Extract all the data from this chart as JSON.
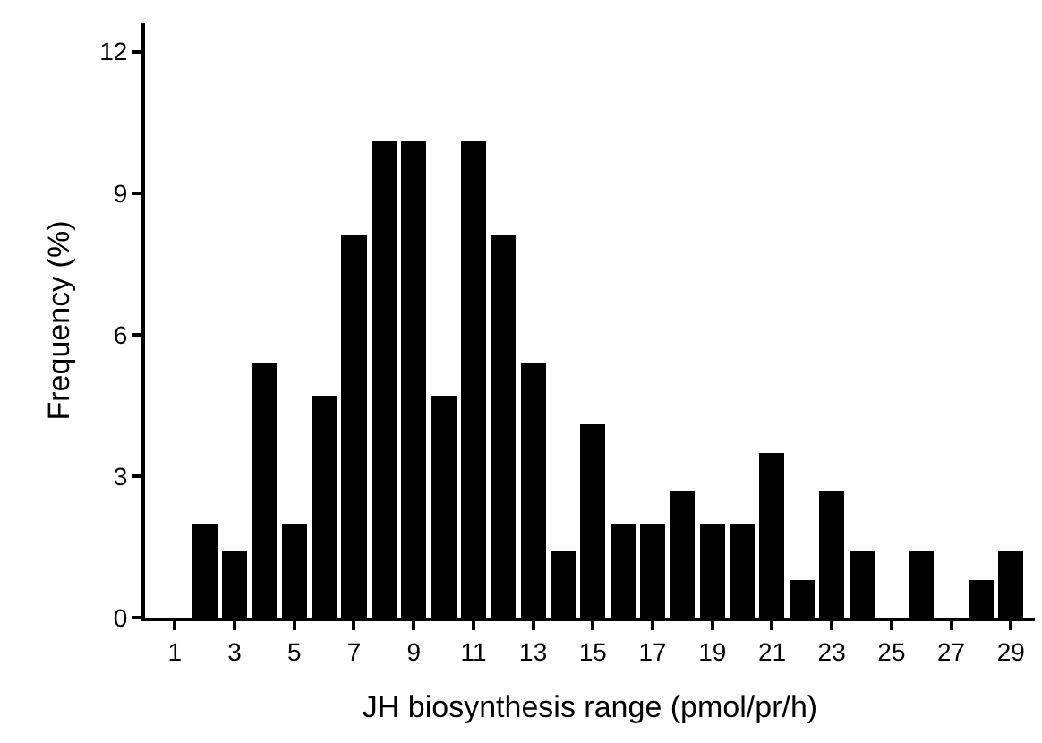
{
  "chart_data": {
    "type": "bar",
    "xlabel": "JH biosynthesis range (pmol/pr/h)",
    "ylabel": "Frequency (%)",
    "x": [
      2,
      3,
      4,
      5,
      6,
      7,
      8,
      9,
      10,
      11,
      12,
      13,
      14,
      15,
      16,
      17,
      18,
      19,
      20,
      21,
      22,
      23,
      24,
      25,
      26,
      27,
      28,
      29
    ],
    "values": [
      2.0,
      1.4,
      5.4,
      2.0,
      4.7,
      8.1,
      10.1,
      10.1,
      4.7,
      10.1,
      8.1,
      5.4,
      1.4,
      4.1,
      2.0,
      2.0,
      2.7,
      2.0,
      2.0,
      3.5,
      0.8,
      2.7,
      1.4,
      0,
      1.4,
      0,
      0.8,
      1.4
    ],
    "color": "#000000",
    "xlim": [
      0,
      29.8
    ],
    "xticks": [
      1,
      3,
      5,
      7,
      9,
      11,
      13,
      15,
      17,
      19,
      21,
      23,
      25,
      27,
      29
    ],
    "ylim": [
      0,
      12.6
    ],
    "yticks": [
      0,
      3,
      6,
      9,
      12
    ],
    "grid": false
  }
}
